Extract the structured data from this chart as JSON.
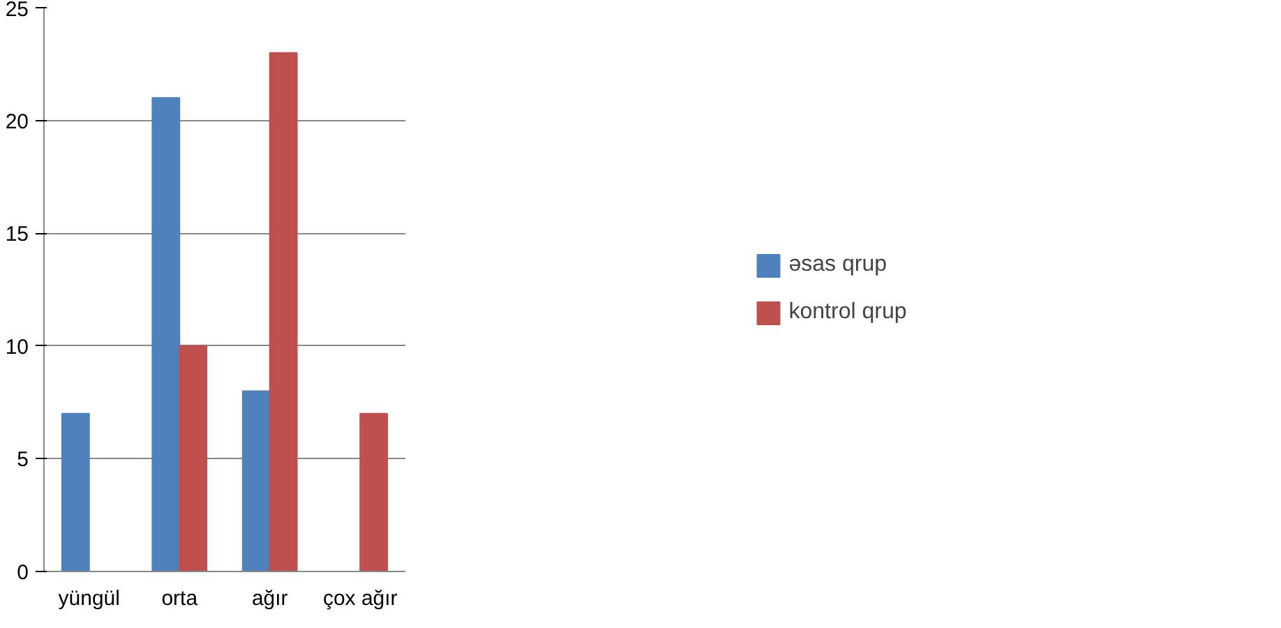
{
  "chart_data": {
    "type": "bar",
    "categories": [
      "yüngül",
      "orta",
      "ağır",
      "çox ağır"
    ],
    "series": [
      {
        "name": "əsas qrup",
        "color": "#4f81bd",
        "values": [
          7,
          21,
          8,
          null
        ]
      },
      {
        "name": "kontrol qrup",
        "color": "#c0504d",
        "values": [
          0,
          10,
          23,
          7
        ]
      }
    ],
    "ylim": [
      0,
      25
    ],
    "yticks": [
      0,
      5,
      10,
      15,
      20,
      25
    ],
    "grid": "y",
    "legend": "right"
  }
}
